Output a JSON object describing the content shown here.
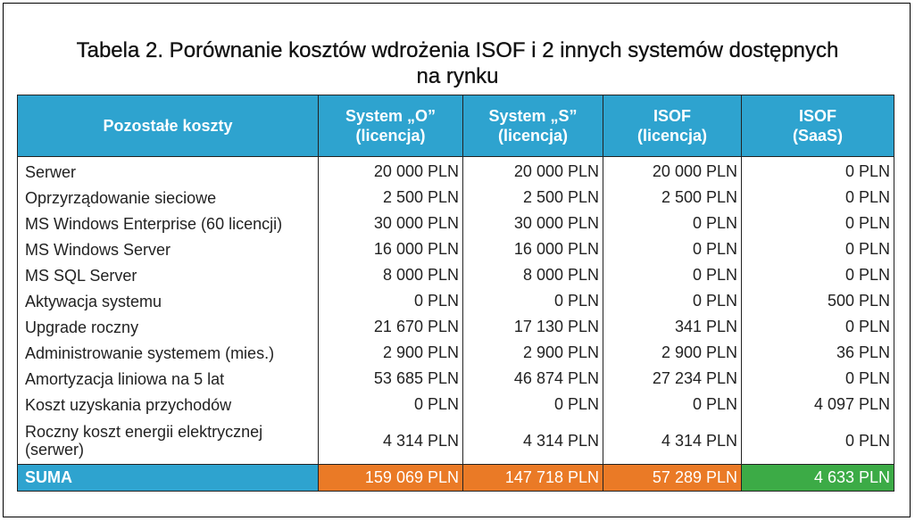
{
  "title_line1": "Tabela 2. Porównanie kosztów wdrożenia ISOF i 2 innych systemów dostępnych",
  "title_line2": "na rynku",
  "headers": [
    {
      "line1": "Pozostałe koszty",
      "line2": ""
    },
    {
      "line1": "System „O”",
      "line2": "(licencja)"
    },
    {
      "line1": "System „S”",
      "line2": "(licencja)"
    },
    {
      "line1": "ISOF",
      "line2": "(licencja)"
    },
    {
      "line1": "ISOF",
      "line2": "(SaaS)"
    }
  ],
  "rows": [
    {
      "label": "Serwer",
      "v": [
        "20 000 PLN",
        "20 000 PLN",
        "20 000 PLN",
        "0 PLN"
      ]
    },
    {
      "label": "Oprzyrządowanie sieciowe",
      "v": [
        "2 500 PLN",
        "2 500 PLN",
        "2 500 PLN",
        "0 PLN"
      ]
    },
    {
      "label": "MS Windows Enterprise (60 licencji)",
      "v": [
        "30 000 PLN",
        "30 000 PLN",
        "0 PLN",
        "0 PLN"
      ]
    },
    {
      "label": "MS Windows Server",
      "v": [
        "16 000 PLN",
        "16 000 PLN",
        "0 PLN",
        "0 PLN"
      ]
    },
    {
      "label": "MS SQL Server",
      "v": [
        "8 000 PLN",
        "8 000 PLN",
        "0 PLN",
        "0 PLN"
      ]
    },
    {
      "label": "Aktywacja systemu",
      "v": [
        "0 PLN",
        "0 PLN",
        "0 PLN",
        "500 PLN"
      ]
    },
    {
      "label": "Upgrade roczny",
      "v": [
        "21 670 PLN",
        "17 130 PLN",
        "341 PLN",
        "0 PLN"
      ]
    },
    {
      "label": "Administrowanie systemem (mies.)",
      "v": [
        "2 900 PLN",
        "2 900 PLN",
        "2 900 PLN",
        "36 PLN"
      ]
    },
    {
      "label": "Amortyzacja liniowa na 5 lat",
      "v": [
        "53 685 PLN",
        "46 874 PLN",
        "27 234 PLN",
        "0 PLN"
      ]
    },
    {
      "label": "Koszt uzyskania przychodów",
      "v": [
        "0 PLN",
        "0 PLN",
        "0 PLN",
        "4 097 PLN"
      ]
    },
    {
      "label": "Roczny koszt energii elektrycznej",
      "label2": "(serwer)",
      "v": [
        "4 314 PLN",
        "4 314 PLN",
        "4 314 PLN",
        "0 PLN"
      ]
    }
  ],
  "sum": {
    "label": "SUMA",
    "v": [
      "159 069 PLN",
      "147 718 PLN",
      "57 289 PLN",
      "4 633 PLN"
    ]
  },
  "colors": {
    "header": "#2ea3cf",
    "sum_orange": "#ea7a26",
    "sum_green": "#3cab46"
  }
}
